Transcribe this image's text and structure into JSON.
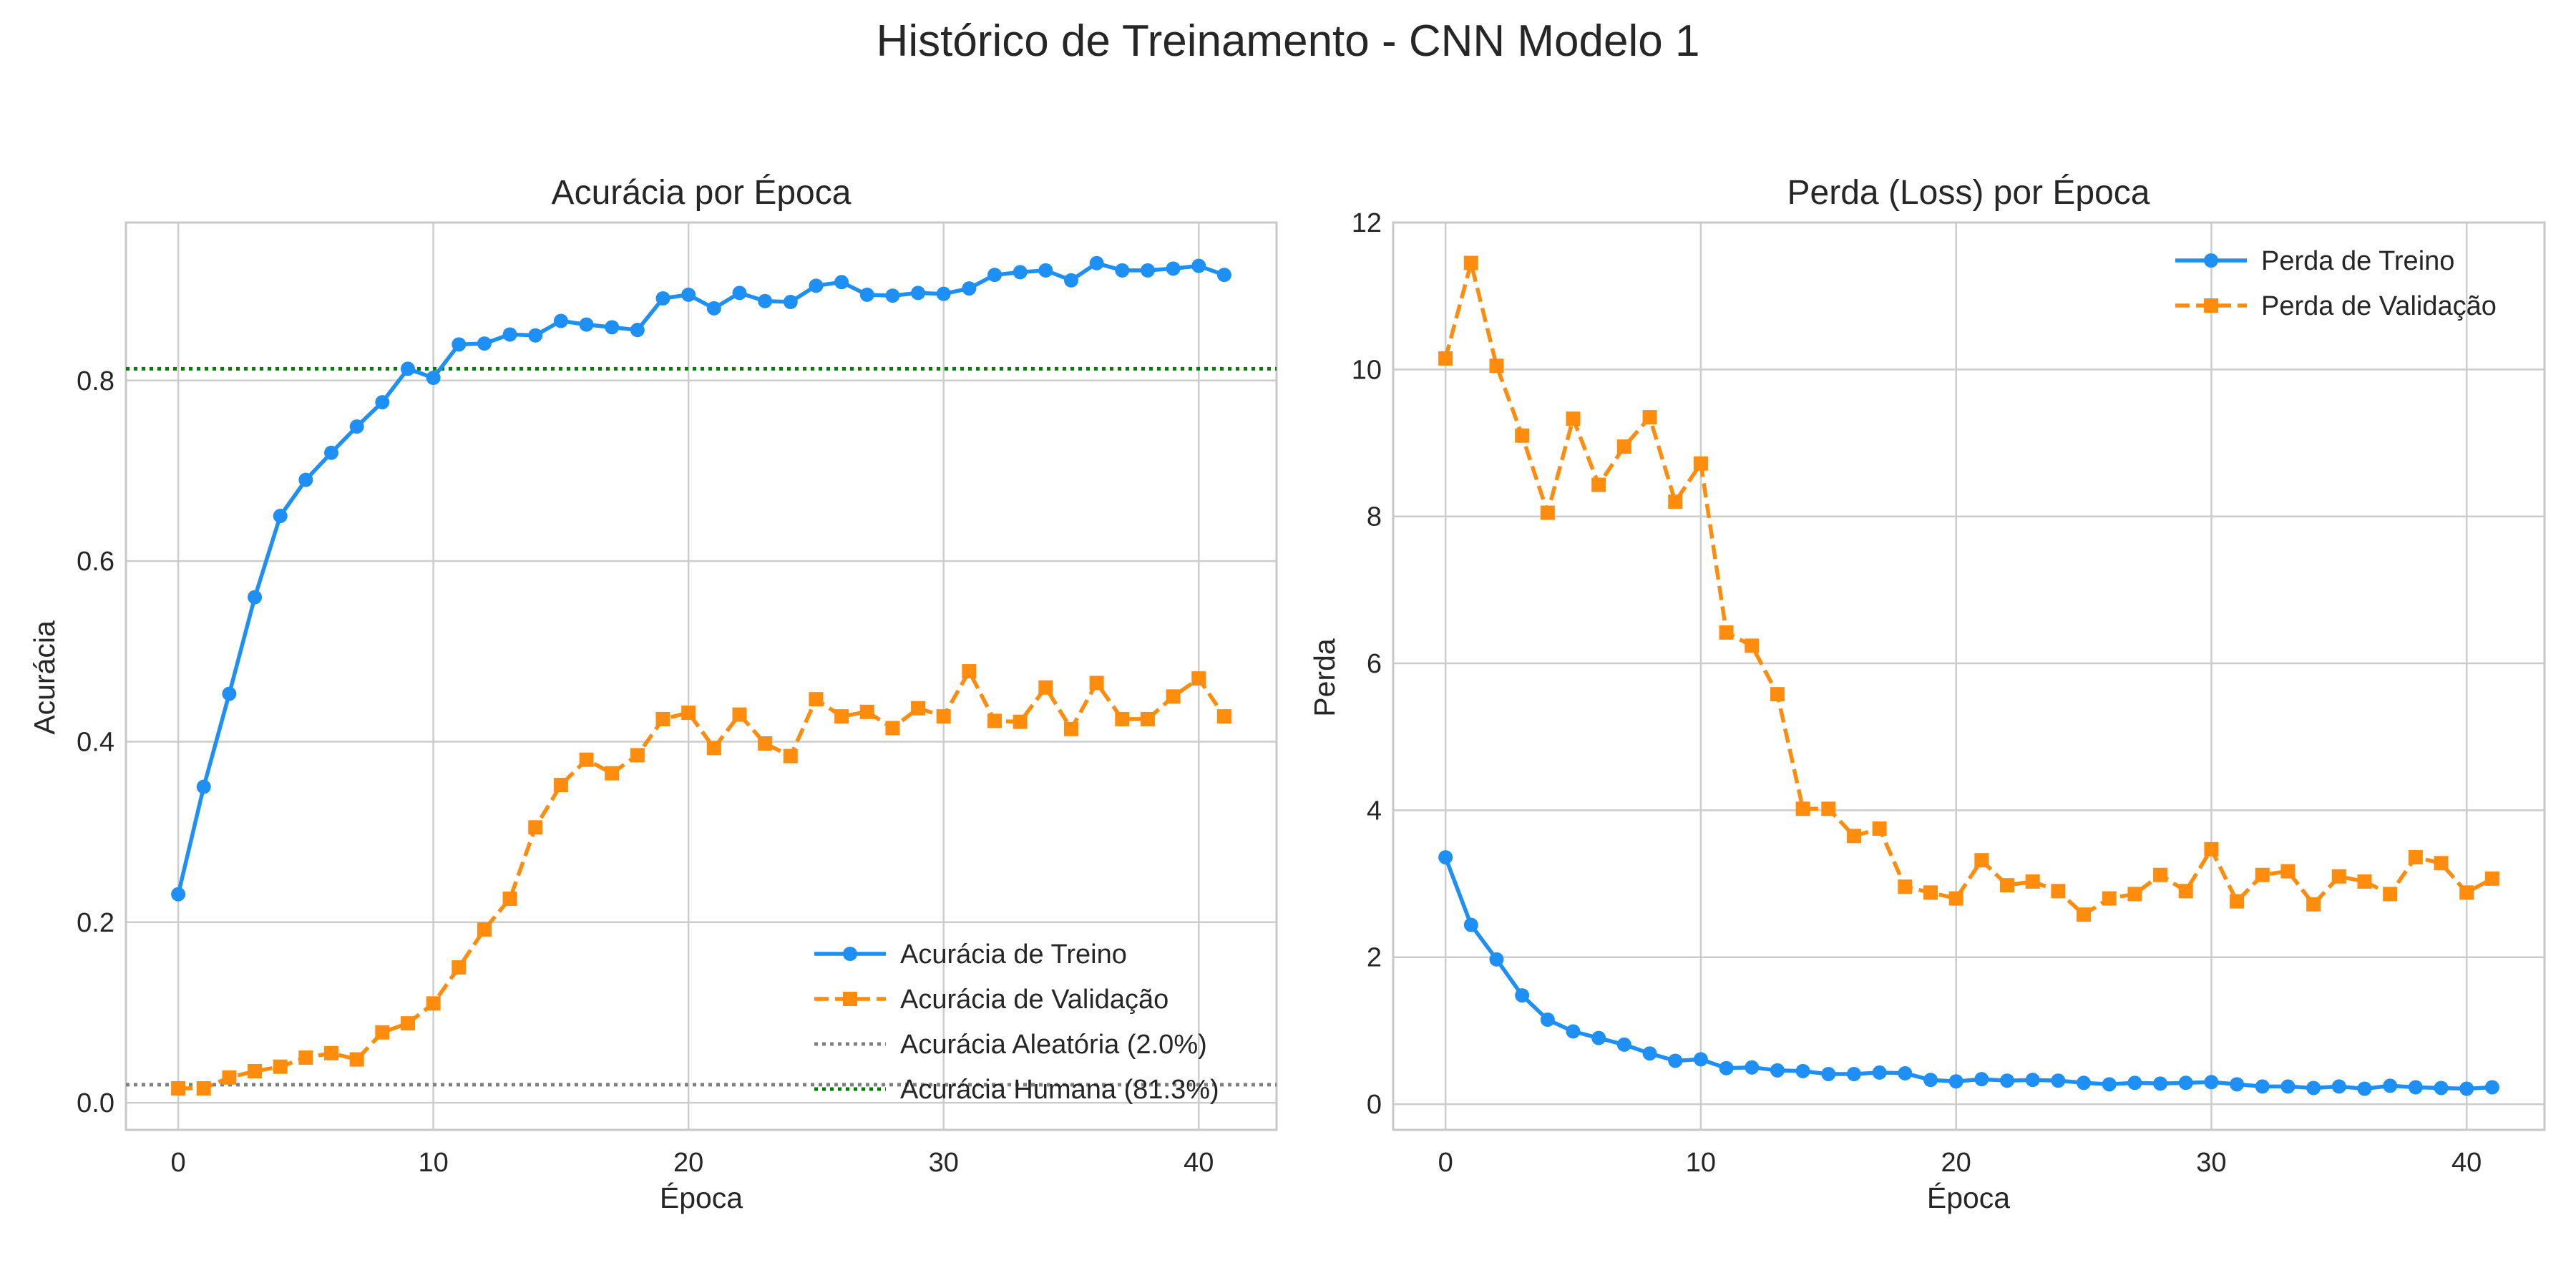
{
  "figure": {
    "suptitle": "Histórico de Treinamento - CNN Modelo 1"
  },
  "colors": {
    "train": "#1e8ff5",
    "val": "#ff8c0d",
    "random_ref": "#808080",
    "human_ref": "#008000",
    "grid": "#cccccc",
    "axes_edge": "#c8c8c8"
  },
  "chart_data": [
    {
      "type": "line",
      "title": "Acurácia por Época",
      "xlabel": "Época",
      "ylabel": "Acurácia",
      "xlim": [
        -2.05,
        43.05
      ],
      "ylim": [
        -0.03,
        0.975
      ],
      "xticks": [
        0,
        10,
        20,
        30,
        40
      ],
      "yticks": [
        0.0,
        0.2,
        0.4,
        0.6,
        0.8
      ],
      "ytick_labels": [
        "0.0",
        "0.2",
        "0.4",
        "0.6",
        "0.8"
      ],
      "grid": true,
      "legend_position": "lower-right",
      "x": [
        0,
        1,
        2,
        3,
        4,
        5,
        6,
        7,
        8,
        9,
        10,
        11,
        12,
        13,
        14,
        15,
        16,
        17,
        18,
        19,
        20,
        21,
        22,
        23,
        24,
        25,
        26,
        27,
        28,
        29,
        30,
        31,
        32,
        33,
        34,
        35,
        36,
        37,
        38,
        39,
        40,
        41
      ],
      "series": [
        {
          "name": "Acurácia de Treino",
          "style": "solid",
          "marker": "circle",
          "color": "#1e8ff5",
          "values": [
            0.231,
            0.35,
            0.453,
            0.56,
            0.65,
            0.69,
            0.72,
            0.749,
            0.776,
            0.813,
            0.803,
            0.84,
            0.841,
            0.851,
            0.85,
            0.866,
            0.862,
            0.859,
            0.856,
            0.891,
            0.895,
            0.88,
            0.897,
            0.888,
            0.887,
            0.905,
            0.909,
            0.895,
            0.894,
            0.897,
            0.896,
            0.902,
            0.917,
            0.92,
            0.922,
            0.911,
            0.93,
            0.922,
            0.922,
            0.924,
            0.927,
            0.917
          ]
        },
        {
          "name": "Acurácia de Validação",
          "style": "dashed",
          "marker": "square",
          "color": "#ff8c0d",
          "values": [
            0.016,
            0.016,
            0.028,
            0.035,
            0.04,
            0.05,
            0.055,
            0.048,
            0.078,
            0.088,
            0.11,
            0.15,
            0.192,
            0.226,
            0.305,
            0.352,
            0.38,
            0.365,
            0.385,
            0.425,
            0.432,
            0.393,
            0.43,
            0.398,
            0.384,
            0.447,
            0.428,
            0.433,
            0.415,
            0.437,
            0.428,
            0.478,
            0.423,
            0.422,
            0.46,
            0.414,
            0.465,
            0.425,
            0.425,
            0.45,
            0.47,
            0.428
          ]
        }
      ],
      "reference_lines": [
        {
          "name": "Acurácia Aleatória (2.0%)",
          "y": 0.02,
          "style": "dotted",
          "color": "#808080"
        },
        {
          "name": "Acurácia Humana (81.3%)",
          "y": 0.813,
          "style": "dotted",
          "color": "#008000"
        }
      ]
    },
    {
      "type": "line",
      "title": "Perda (Loss) por Época",
      "xlabel": "Época",
      "ylabel": "Perda",
      "xlim": [
        -2.05,
        43.05
      ],
      "ylim": [
        -0.35,
        12.0
      ],
      "xticks": [
        0,
        10,
        20,
        30,
        40
      ],
      "yticks": [
        0,
        2,
        4,
        6,
        8,
        10,
        12
      ],
      "ytick_labels": [
        "0",
        "2",
        "4",
        "6",
        "8",
        "10",
        "12"
      ],
      "grid": true,
      "legend_position": "upper-right",
      "x": [
        0,
        1,
        2,
        3,
        4,
        5,
        6,
        7,
        8,
        9,
        10,
        11,
        12,
        13,
        14,
        15,
        16,
        17,
        18,
        19,
        20,
        21,
        22,
        23,
        24,
        25,
        26,
        27,
        28,
        29,
        30,
        31,
        32,
        33,
        34,
        35,
        36,
        37,
        38,
        39,
        40,
        41
      ],
      "series": [
        {
          "name": "Perda de Treino",
          "style": "solid",
          "marker": "circle",
          "color": "#1e8ff5",
          "values": [
            3.36,
            2.44,
            1.97,
            1.48,
            1.15,
            0.99,
            0.9,
            0.81,
            0.69,
            0.59,
            0.61,
            0.49,
            0.5,
            0.46,
            0.45,
            0.41,
            0.41,
            0.43,
            0.42,
            0.33,
            0.31,
            0.34,
            0.32,
            0.33,
            0.32,
            0.29,
            0.27,
            0.29,
            0.28,
            0.29,
            0.3,
            0.27,
            0.24,
            0.24,
            0.22,
            0.24,
            0.21,
            0.25,
            0.23,
            0.22,
            0.21,
            0.23
          ]
        },
        {
          "name": "Perda de Validação",
          "style": "dashed",
          "marker": "square",
          "color": "#ff8c0d",
          "values": [
            10.15,
            11.45,
            10.05,
            9.1,
            8.05,
            9.33,
            8.43,
            8.95,
            9.35,
            8.2,
            8.72,
            6.42,
            6.24,
            5.58,
            4.02,
            4.02,
            3.65,
            3.75,
            2.96,
            2.88,
            2.8,
            3.32,
            2.98,
            3.03,
            2.9,
            2.58,
            2.8,
            2.86,
            3.12,
            2.9,
            3.47,
            2.76,
            3.12,
            3.17,
            2.72,
            3.1,
            3.03,
            2.86,
            3.36,
            3.28,
            2.88,
            3.07
          ]
        }
      ],
      "reference_lines": []
    }
  ]
}
